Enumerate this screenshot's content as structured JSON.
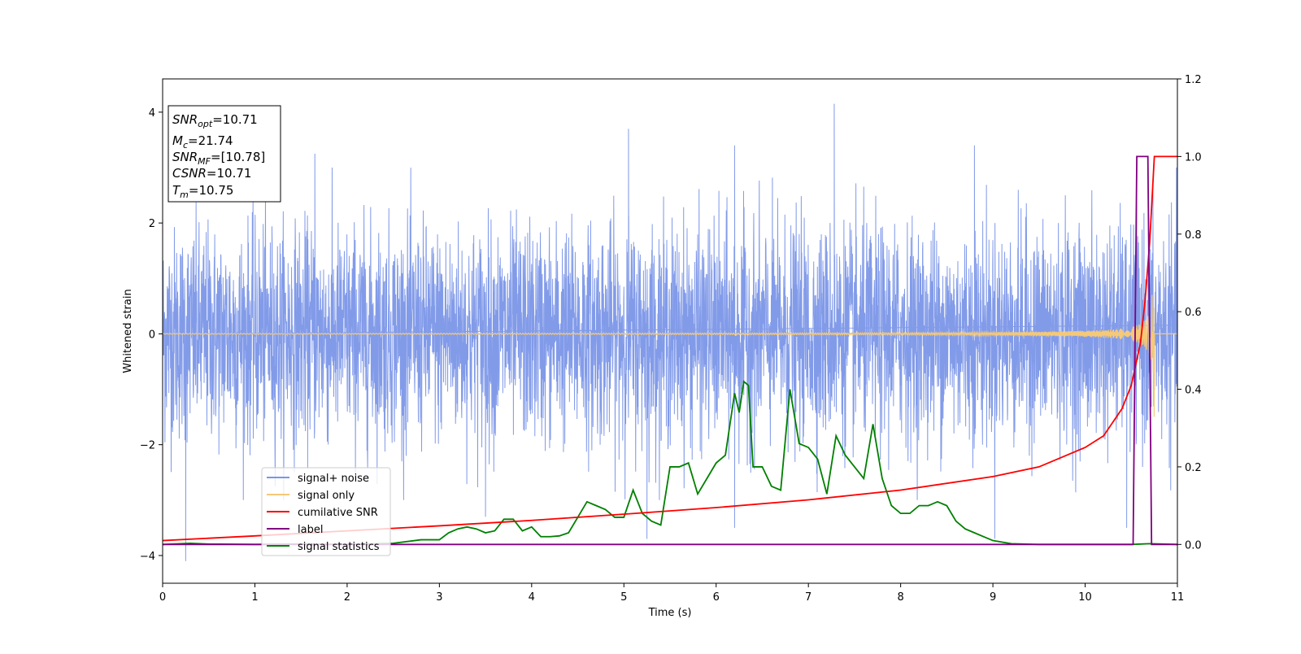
{
  "chart_data": {
    "type": "line",
    "xlabel": "Time (s)",
    "ylabel": "Whitened strain",
    "xlim": [
      0,
      11
    ],
    "ylim_left": [
      -4.5,
      4.6
    ],
    "ylim_right": [
      -0.1,
      1.2
    ],
    "x_ticks": [
      "0",
      "1",
      "2",
      "3",
      "4",
      "5",
      "6",
      "7",
      "8",
      "9",
      "10",
      "11"
    ],
    "y_ticks_left": [
      "−4",
      "−2",
      "0",
      "2",
      "4"
    ],
    "y_ticks_right": [
      "0.0",
      "0.2",
      "0.4",
      "0.6",
      "0.8",
      "1.0",
      "1.2"
    ],
    "grid": false,
    "legend_position": "lower-left",
    "legend": [
      {
        "label": "signal+ noise",
        "color": "#7b96e8"
      },
      {
        "label": "signal only",
        "color": "#f5c977"
      },
      {
        "label": "cumilative SNR",
        "color": "#ff0000"
      },
      {
        "label": "label",
        "color": "#800080"
      },
      {
        "label": "signal statistics",
        "color": "#008000"
      }
    ],
    "info_box": [
      {
        "sym": "SNR",
        "sub": "opt",
        "val": "=10.71"
      },
      {
        "sym": "M",
        "sub": "c",
        "val": "=21.74"
      },
      {
        "sym": "SNR",
        "sub": "MF",
        "val": "=[10.78]"
      },
      {
        "sym": "CSNR",
        "sub": "",
        "val": "=10.71"
      },
      {
        "sym": "T",
        "sub": "m",
        "val": "=10.75"
      }
    ],
    "series": [
      {
        "name": "signal+ noise",
        "axis": "left",
        "color": "#7b96e8",
        "description": "dense whitened noise, approx. range -2.5 to 2.5 with spikes",
        "spikes": [
          [
            0.25,
            -4.1
          ],
          [
            1.65,
            3.25
          ],
          [
            3.5,
            -3.3
          ],
          [
            5.05,
            3.7
          ],
          [
            5.25,
            -3.7
          ],
          [
            6.2,
            3.4
          ],
          [
            6.2,
            -3.5
          ],
          [
            7.28,
            4.15
          ],
          [
            8.8,
            3.4
          ],
          [
            9.02,
            -3.7
          ],
          [
            10.45,
            -3.5
          ]
        ]
      },
      {
        "name": "signal only",
        "axis": "left",
        "color": "#f5c977",
        "chirp_end": 10.75,
        "peak_amplitude": 1.5
      },
      {
        "name": "cumilative SNR",
        "axis": "right",
        "color": "#ff0000",
        "x": [
          0,
          1,
          2,
          3,
          4,
          5,
          6,
          7,
          8,
          9,
          9.5,
          10,
          10.2,
          10.4,
          10.5,
          10.6,
          10.65,
          10.7,
          10.75,
          11
        ],
        "values": [
          0.01,
          0.022,
          0.035,
          0.048,
          0.062,
          0.078,
          0.095,
          0.115,
          0.14,
          0.175,
          0.2,
          0.25,
          0.28,
          0.35,
          0.41,
          0.52,
          0.63,
          0.78,
          1.0,
          1.0
        ]
      },
      {
        "name": "label",
        "axis": "right",
        "color": "#800080",
        "x": [
          0,
          10.52,
          10.56,
          10.68,
          10.72,
          11
        ],
        "values": [
          0.0,
          0.0,
          1.0,
          1.0,
          0.0,
          0.0
        ]
      },
      {
        "name": "signal statistics",
        "axis": "right",
        "color": "#008000",
        "x": [
          0,
          0.3,
          0.5,
          1,
          1.5,
          2,
          2.5,
          2.8,
          3,
          3.1,
          3.2,
          3.3,
          3.4,
          3.5,
          3.6,
          3.7,
          3.8,
          3.9,
          4.0,
          4.1,
          4.2,
          4.3,
          4.4,
          4.5,
          4.6,
          4.7,
          4.8,
          4.9,
          5.0,
          5.1,
          5.2,
          5.3,
          5.4,
          5.5,
          5.6,
          5.7,
          5.8,
          5.9,
          6.0,
          6.1,
          6.2,
          6.25,
          6.3,
          6.35,
          6.4,
          6.5,
          6.6,
          6.7,
          6.8,
          6.9,
          7.0,
          7.1,
          7.2,
          7.3,
          7.4,
          7.5,
          7.6,
          7.7,
          7.8,
          7.9,
          8.0,
          8.1,
          8.2,
          8.3,
          8.4,
          8.5,
          8.6,
          8.7,
          8.8,
          8.9,
          9.0,
          9.2,
          9.5,
          10.0,
          10.5,
          10.7,
          11
        ],
        "values": [
          0.0,
          0.003,
          0.001,
          0.0,
          0.001,
          0.0,
          0.003,
          0.012,
          0.012,
          0.03,
          0.04,
          0.045,
          0.04,
          0.03,
          0.035,
          0.065,
          0.065,
          0.035,
          0.045,
          0.02,
          0.02,
          0.022,
          0.03,
          0.07,
          0.11,
          0.1,
          0.09,
          0.07,
          0.07,
          0.14,
          0.08,
          0.06,
          0.05,
          0.2,
          0.2,
          0.21,
          0.13,
          0.17,
          0.21,
          0.23,
          0.39,
          0.34,
          0.42,
          0.41,
          0.2,
          0.2,
          0.15,
          0.14,
          0.4,
          0.26,
          0.25,
          0.22,
          0.13,
          0.28,
          0.23,
          0.2,
          0.17,
          0.31,
          0.17,
          0.1,
          0.08,
          0.08,
          0.1,
          0.1,
          0.11,
          0.1,
          0.06,
          0.04,
          0.03,
          0.02,
          0.01,
          0.002,
          0.0,
          0.0,
          0.0,
          0.002,
          0.0
        ]
      }
    ]
  }
}
